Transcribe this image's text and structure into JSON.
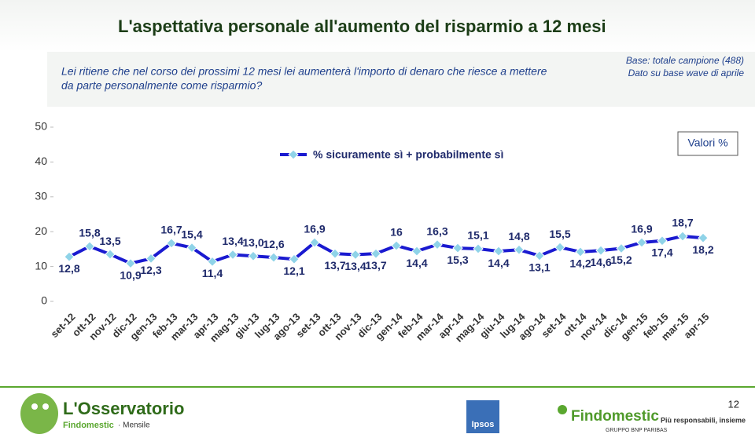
{
  "header": {
    "title": "L'aspettativa personale all'aumento del risparmio a 12 mesi",
    "question": [
      "Lei ritiene che nel corso dei prossimi 12 mesi lei aumenterà l'importo di denaro che riesce a mettere",
      "da parte personalmente come risparmio?"
    ],
    "base": [
      "Base: totale campione (488)",
      "Dato su base wave di aprile"
    ]
  },
  "chart_data": {
    "type": "line",
    "categories": [
      "set-12",
      "ott-12",
      "nov-12",
      "dic-12",
      "gen-13",
      "feb-13",
      "mar-13",
      "apr-13",
      "mag-13",
      "giu-13",
      "lug-13",
      "ago-13",
      "set-13",
      "ott-13",
      "nov-13",
      "dic-13",
      "gen-14",
      "feb-14",
      "mar-14",
      "apr-14",
      "mag-14",
      "giu-14",
      "lug-14",
      "ago-14",
      "set-14",
      "ott-14",
      "nov-14",
      "dic-14",
      "gen-15",
      "feb-15",
      "mar-15",
      "apr-15"
    ],
    "series": [
      {
        "name": "% sicuramente sì + probabilmente sì",
        "color": "#1a1ad0",
        "marker_color": "#8fd3e8",
        "values": [
          12.8,
          15.8,
          13.5,
          10.9,
          12.3,
          16.7,
          15.4,
          11.4,
          13.4,
          13.0,
          12.6,
          12.1,
          16.9,
          13.7,
          13.4,
          13.7,
          16,
          14.4,
          16.3,
          15.3,
          15.1,
          14.4,
          14.8,
          13.1,
          15.5,
          14.2,
          14.6,
          15.2,
          16.9,
          17.4,
          18.7,
          18.2
        ],
        "value_labels": [
          "12,8",
          "15,8",
          "13,5",
          "10,9",
          "12,3",
          "16,7",
          "15,4",
          "11,4",
          "13,4",
          "13,0",
          "12,6",
          "12,1",
          "16,9",
          "13,7",
          "13,4",
          "13,7",
          "16",
          "14,4",
          "16,3",
          "15,3",
          "15,1",
          "14,4",
          "14,8",
          "13,1",
          "15,5",
          "14,2",
          "14,6",
          "15,2",
          "16,9",
          "17,4",
          "18,7",
          "18,2"
        ]
      }
    ],
    "ylim": [
      0,
      50
    ],
    "yticks": [
      0,
      10,
      20,
      30,
      40,
      50
    ],
    "grid": false,
    "annotation": "Valori %"
  },
  "footer": {
    "brand": "L'Osservatorio",
    "sub": "Findomestic",
    "sub2": "· Mensile",
    "ipsos": "Ipsos",
    "findomestic": "Findomestic",
    "group": "GRUPPO BNP PARIBAS",
    "slogan": "Più responsabili, insieme",
    "page": "12"
  }
}
